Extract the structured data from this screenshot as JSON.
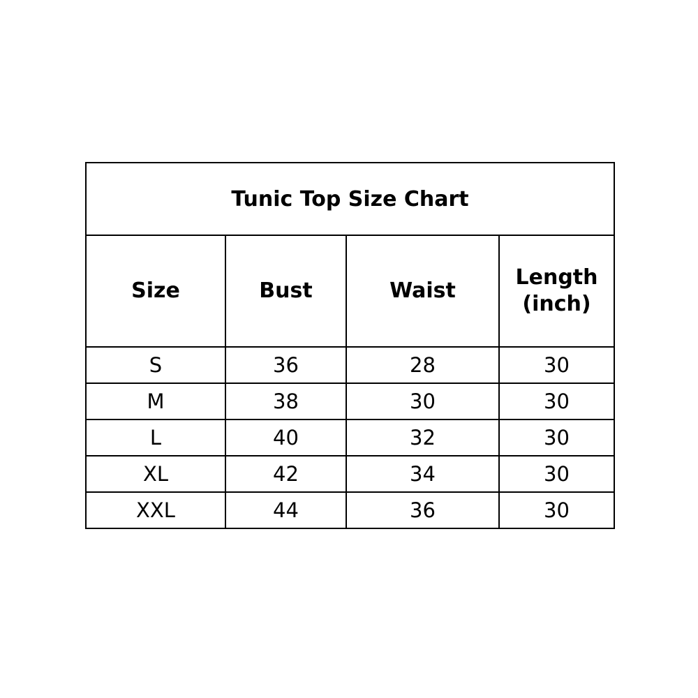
{
  "title": "Tunic Top Size Chart",
  "headers": [
    "Size",
    "Bust",
    "Waist",
    "Length",
    "(inch)"
  ],
  "rows": [
    [
      "S",
      "36",
      "28",
      "30"
    ],
    [
      "M",
      "38",
      "30",
      "30"
    ],
    [
      "L",
      "40",
      "32",
      "30"
    ],
    [
      "XL",
      "42",
      "34",
      "30"
    ],
    [
      "XXL",
      "44",
      "36",
      "30"
    ]
  ]
}
